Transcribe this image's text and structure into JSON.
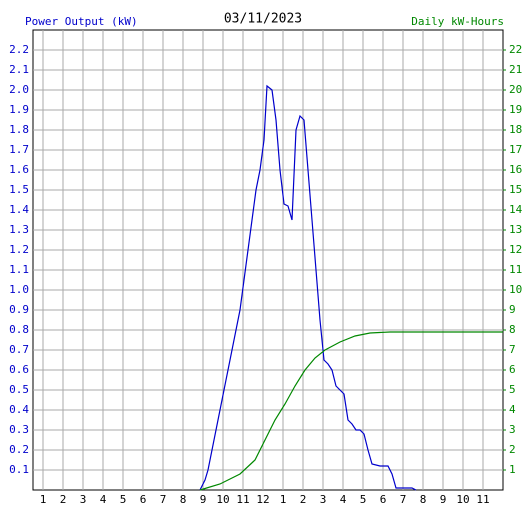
{
  "chart_data": {
    "type": "line",
    "title": "03/11/2023",
    "ylabel": "Power Output (kW)",
    "y2label": "Daily kW-Hours",
    "xlim": [
      0.5,
      24
    ],
    "xticks": [
      1,
      2,
      3,
      4,
      5,
      6,
      7,
      8,
      9,
      10,
      11,
      12,
      {
        "value": 13,
        "label": "1"
      },
      {
        "value": 14,
        "label": "2"
      },
      {
        "value": 15,
        "label": "3"
      },
      {
        "value": 16,
        "label": "4"
      },
      {
        "value": 17,
        "label": "5"
      },
      {
        "value": 18,
        "label": "6"
      },
      {
        "value": 19,
        "label": "7"
      },
      {
        "value": 20,
        "label": "8"
      },
      {
        "value": 21,
        "label": "9"
      },
      {
        "value": 22,
        "label": "10"
      },
      {
        "value": 23,
        "label": "11"
      }
    ],
    "ylim": [
      0,
      2.3
    ],
    "yticks": [
      0.1,
      0.2,
      0.3,
      0.4,
      0.5,
      0.6,
      0.7,
      0.8,
      0.9,
      {
        "value": 1,
        "label": "1.0"
      },
      1.1,
      1.2,
      1.3,
      1.4,
      1.5,
      1.6,
      1.7,
      1.8,
      1.9,
      {
        "value": 2,
        "label": "2.0"
      },
      2.1,
      2.2
    ],
    "y2lim": [
      0,
      23
    ],
    "y2ticks": [
      1,
      2,
      3,
      4,
      5,
      6,
      7,
      8,
      9,
      10,
      11,
      12,
      13,
      14,
      15,
      16,
      17,
      18,
      19,
      20,
      21,
      22
    ],
    "grid": true,
    "series": [
      {
        "color": "#0000cc",
        "x": [
          8.85,
          9.1,
          9.25,
          9.45,
          9.65,
          9.85,
          10.05,
          10.25,
          10.45,
          10.65,
          10.85,
          11.05,
          11.25,
          11.45,
          11.65,
          11.85,
          12.05,
          12.2,
          12.45,
          12.65,
          12.85,
          13.05,
          13.25,
          13.45,
          13.65,
          13.85,
          14.05,
          14.25,
          14.45,
          14.65,
          14.85,
          15.05,
          15.25,
          15.45,
          15.65,
          15.85,
          16.05,
          16.25,
          16.45,
          16.65,
          16.85,
          17.05,
          17.25,
          17.45,
          17.85,
          18.25,
          18.45,
          18.65,
          19.45,
          19.65
        ],
        "values": [
          0,
          0.05,
          0.1,
          0.2,
          0.3,
          0.4,
          0.5,
          0.6,
          0.7,
          0.8,
          0.9,
          1.05,
          1.2,
          1.35,
          1.5,
          1.6,
          1.75,
          2.02,
          2.0,
          1.85,
          1.6,
          1.43,
          1.42,
          1.35,
          1.8,
          1.87,
          1.85,
          1.6,
          1.35,
          1.1,
          0.85,
          0.65,
          0.63,
          0.6,
          0.52,
          0.5,
          0.48,
          0.35,
          0.33,
          0.3,
          0.3,
          0.28,
          0.2,
          0.13,
          0.12,
          0.12,
          0.08,
          0.01,
          0.01,
          0
        ]
      },
      {
        "color": "#008800",
        "axis": "y2",
        "x": [
          8.85,
          9.85,
          10.85,
          11.6,
          12.1,
          12.6,
          13.1,
          13.6,
          14.1,
          14.6,
          15.1,
          15.85,
          16.6,
          17.35,
          18.35,
          24
        ],
        "values": [
          0,
          0.3,
          0.8,
          1.5,
          2.5,
          3.5,
          4.3,
          5.2,
          6.0,
          6.6,
          7.0,
          7.4,
          7.7,
          7.85,
          7.9,
          7.9
        ]
      }
    ]
  }
}
